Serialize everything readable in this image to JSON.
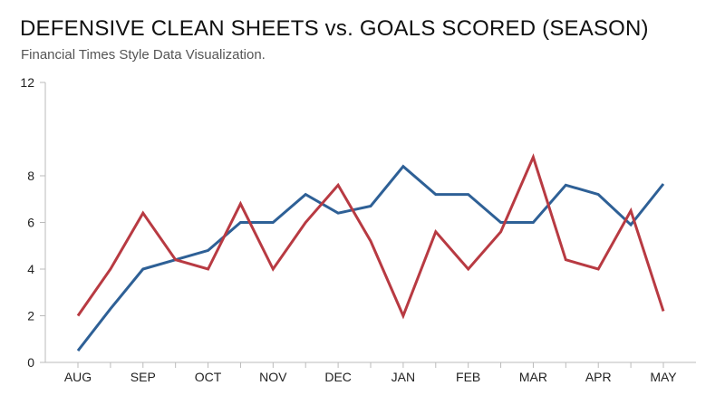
{
  "chart_data": {
    "type": "line",
    "title": "DEFENSIVE CLEAN SHEETS vs. GOALS SCORED (SEASON)",
    "subtitle": "Financial Times Style Data Visualization.",
    "xlabel": "",
    "ylabel": "",
    "x_tick_labels": [
      "AUG",
      "SEP",
      "OCT",
      "NOV",
      "DEC",
      "JAN",
      "FEB",
      "MAR",
      "APR",
      "MAY"
    ],
    "y_ticks": [
      0,
      2,
      4,
      6,
      8,
      12
    ],
    "ylim": [
      0,
      12
    ],
    "x_range": [
      0,
      18
    ],
    "grid": false,
    "legend": "none",
    "series": [
      {
        "color": "#2e6096",
        "x": [
          0,
          1,
          2,
          3,
          4,
          5,
          6,
          7,
          8,
          9,
          10,
          11,
          12,
          13,
          14,
          15,
          16,
          17,
          18
        ],
        "values": [
          0.5,
          2.3,
          4.0,
          4.4,
          4.8,
          6.0,
          6.0,
          7.2,
          6.4,
          6.7,
          8.4,
          7.2,
          7.2,
          6.0,
          6.0,
          7.6,
          7.2,
          5.9,
          7.65
        ]
      },
      {
        "color": "#b83a42",
        "x": [
          0,
          1,
          2,
          3,
          4,
          5,
          6,
          7,
          8,
          9,
          10,
          11,
          12,
          13,
          14,
          15,
          16,
          17,
          18
        ],
        "values": [
          2.0,
          4.0,
          6.4,
          4.4,
          4.0,
          6.8,
          4.0,
          6.0,
          7.6,
          5.2,
          2.0,
          5.6,
          4.0,
          5.6,
          8.8,
          4.4,
          4.0,
          6.5,
          2.2
        ]
      }
    ]
  }
}
